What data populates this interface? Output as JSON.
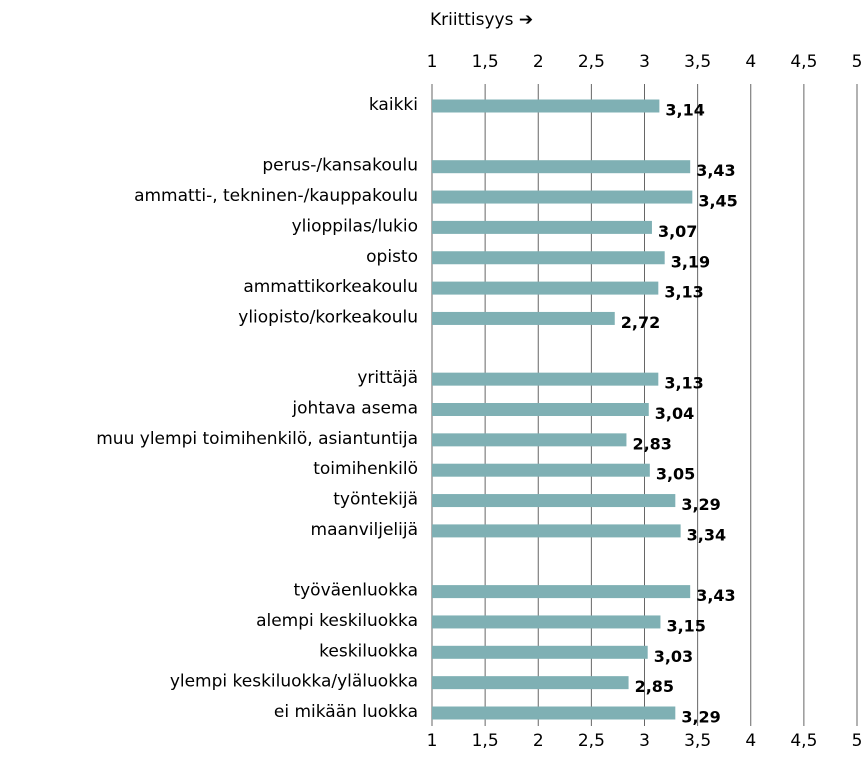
{
  "chart_data": {
    "type": "bar",
    "orientation": "horizontal",
    "x_axis_label": "Kriittisyys ➔",
    "categories": [
      "kaikki",
      null,
      "perus-/kansakoulu",
      "ammatti-, tekninen-/kauppakoulu",
      "ylioppilas/lukio",
      "opisto",
      "ammattikorkeakoulu",
      "yliopisto/korkeakoulu",
      null,
      "yrittäjä",
      "johtava asema",
      "muu ylempi toimihenkilö, asiantuntija",
      "toimihenkilö",
      "työntekijä",
      "maanviljelijä",
      null,
      "työväenluokka",
      "alempi keskiluokka",
      "keskiluokka",
      "ylempi keskiluokka/yläluokka",
      "ei mikään luokka"
    ],
    "values": [
      3.14,
      null,
      3.43,
      3.45,
      3.07,
      3.19,
      3.13,
      2.72,
      null,
      3.13,
      3.04,
      2.83,
      3.05,
      3.29,
      3.34,
      null,
      3.43,
      3.15,
      3.03,
      2.85,
      3.29
    ],
    "value_labels": [
      "3,14",
      null,
      "3,43",
      "3,45",
      "3,07",
      "3,19",
      "3,13",
      "2,72",
      null,
      "3,13",
      "3,04",
      "2,83",
      "3,05",
      "3,29",
      "3,34",
      null,
      "3,43",
      "3,15",
      "3,03",
      "2,85",
      "3,29"
    ],
    "color": "#7fb0b4",
    "xlim": [
      1,
      5
    ],
    "xticks": [
      1,
      {
        "value": 1.5,
        "label": "1,5"
      },
      2,
      {
        "value": 2.5,
        "label": "2,5"
      },
      3,
      {
        "value": 3.5,
        "label": "3,5"
      },
      4,
      {
        "value": 4.5,
        "label": "4,5"
      },
      5
    ],
    "grid": true
  }
}
